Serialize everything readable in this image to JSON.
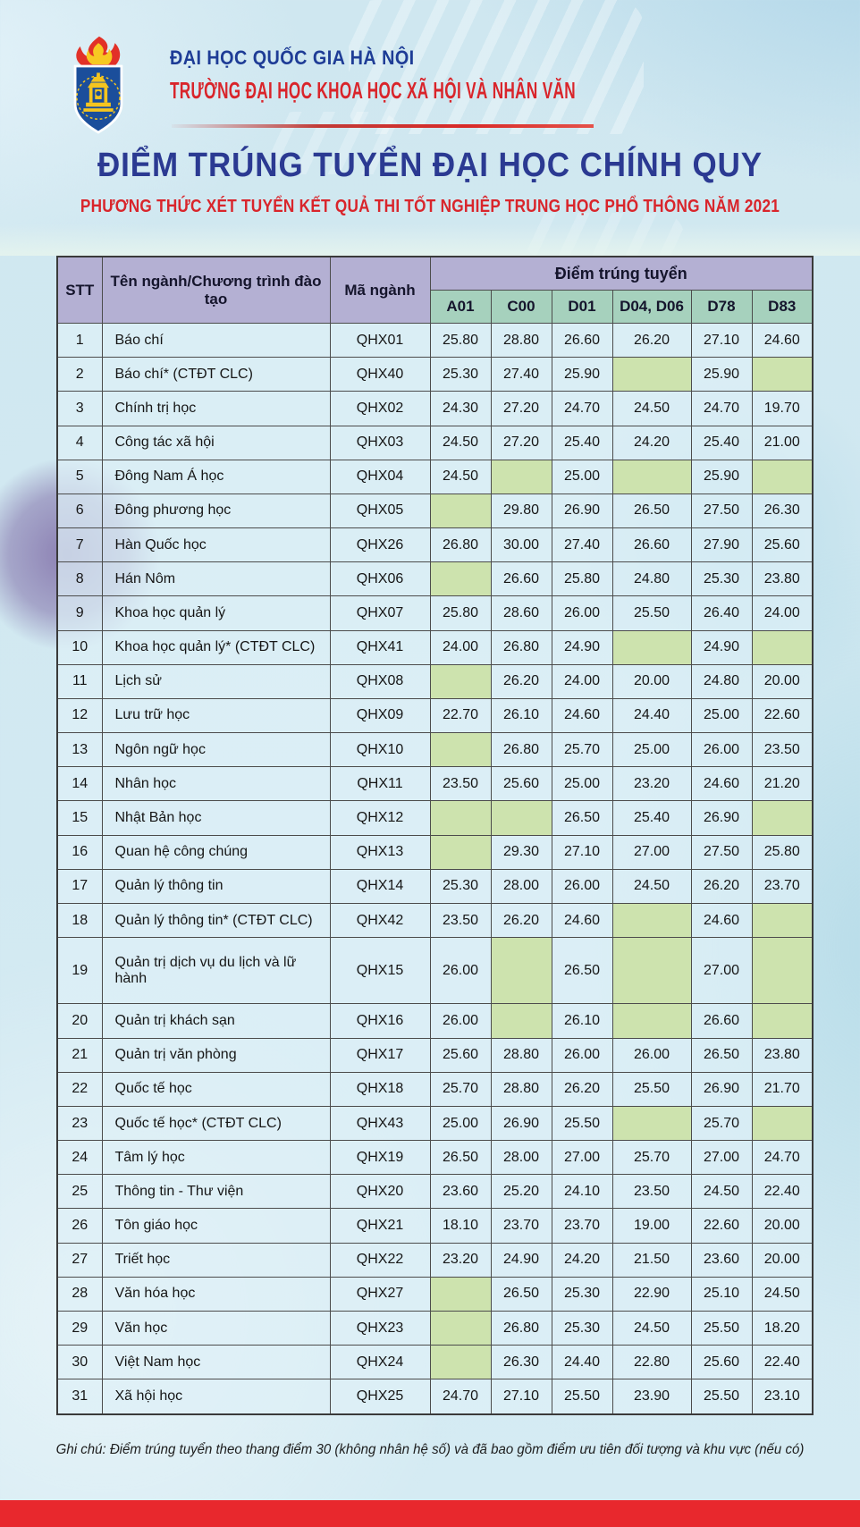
{
  "header": {
    "university": "ĐẠI HỌC QUỐC GIA HÀ NỘI",
    "school": "TRƯỜNG ĐẠI HỌC KHOA HỌC XÃ HỘI VÀ NHÂN VĂN",
    "logo": "vnu-ussh-crest"
  },
  "title": {
    "main": "ĐIỂM TRÚNG TUYỂN ĐẠI HỌC CHÍNH QUY",
    "subtitle": "PHƯƠNG THỨC XÉT TUYỂN KẾT QUẢ THI TỐT NGHIỆP TRUNG HỌC PHỔ THÔNG NĂM 2021"
  },
  "table": {
    "headers": {
      "stt": "STT",
      "name": "Tên ngành/Chương trình đào tạo",
      "code": "Mã ngành",
      "score_group": "Điểm trúng tuyển",
      "score_columns": [
        "A01",
        "C00",
        "D01",
        "D04, D06",
        "D78",
        "D83"
      ]
    },
    "rows": [
      {
        "stt": "1",
        "name": "Báo chí",
        "code": "QHX01",
        "scores": [
          "25.80",
          "28.80",
          "26.60",
          "26.20",
          "27.10",
          "24.60"
        ]
      },
      {
        "stt": "2",
        "name": "Báo chí* (CTĐT CLC)",
        "code": "QHX40",
        "scores": [
          "25.30",
          "27.40",
          "25.90",
          "",
          "25.90",
          ""
        ]
      },
      {
        "stt": "3",
        "name": "Chính trị học",
        "code": "QHX02",
        "scores": [
          "24.30",
          "27.20",
          "24.70",
          "24.50",
          "24.70",
          "19.70"
        ]
      },
      {
        "stt": "4",
        "name": "Công tác xã hội",
        "code": "QHX03",
        "scores": [
          "24.50",
          "27.20",
          "25.40",
          "24.20",
          "25.40",
          "21.00"
        ]
      },
      {
        "stt": "5",
        "name": "Đông Nam Á học",
        "code": "QHX04",
        "scores": [
          "24.50",
          "",
          "25.00",
          "",
          "25.90",
          ""
        ]
      },
      {
        "stt": "6",
        "name": "Đông phương học",
        "code": "QHX05",
        "scores": [
          "",
          "29.80",
          "26.90",
          "26.50",
          "27.50",
          "26.30"
        ]
      },
      {
        "stt": "7",
        "name": "Hàn Quốc học",
        "code": "QHX26",
        "scores": [
          "26.80",
          "30.00",
          "27.40",
          "26.60",
          "27.90",
          "25.60"
        ]
      },
      {
        "stt": "8",
        "name": "Hán Nôm",
        "code": "QHX06",
        "scores": [
          "",
          "26.60",
          "25.80",
          "24.80",
          "25.30",
          "23.80"
        ]
      },
      {
        "stt": "9",
        "name": "Khoa học quản lý",
        "code": "QHX07",
        "scores": [
          "25.80",
          "28.60",
          "26.00",
          "25.50",
          "26.40",
          "24.00"
        ]
      },
      {
        "stt": "10",
        "name": "Khoa học quản lý* (CTĐT CLC)",
        "code": "QHX41",
        "scores": [
          "24.00",
          "26.80",
          "24.90",
          "",
          "24.90",
          ""
        ]
      },
      {
        "stt": "11",
        "name": "Lịch sử",
        "code": "QHX08",
        "scores": [
          "",
          "26.20",
          "24.00",
          "20.00",
          "24.80",
          "20.00"
        ]
      },
      {
        "stt": "12",
        "name": "Lưu trữ học",
        "code": "QHX09",
        "scores": [
          "22.70",
          "26.10",
          "24.60",
          "24.40",
          "25.00",
          "22.60"
        ]
      },
      {
        "stt": "13",
        "name": "Ngôn ngữ học",
        "code": "QHX10",
        "scores": [
          "",
          "26.80",
          "25.70",
          "25.00",
          "26.00",
          "23.50"
        ]
      },
      {
        "stt": "14",
        "name": "Nhân học",
        "code": "QHX11",
        "scores": [
          "23.50",
          "25.60",
          "25.00",
          "23.20",
          "24.60",
          "21.20"
        ]
      },
      {
        "stt": "15",
        "name": "Nhật Bản học",
        "code": "QHX12",
        "scores": [
          "",
          "",
          "26.50",
          "25.40",
          "26.90",
          ""
        ]
      },
      {
        "stt": "16",
        "name": "Quan hệ công chúng",
        "code": "QHX13",
        "scores": [
          "",
          "29.30",
          "27.10",
          "27.00",
          "27.50",
          "25.80"
        ]
      },
      {
        "stt": "17",
        "name": "Quản lý thông tin",
        "code": "QHX14",
        "scores": [
          "25.30",
          "28.00",
          "26.00",
          "24.50",
          "26.20",
          "23.70"
        ]
      },
      {
        "stt": "18",
        "name": "Quản lý thông tin* (CTĐT CLC)",
        "code": "QHX42",
        "scores": [
          "23.50",
          "26.20",
          "24.60",
          "",
          "24.60",
          ""
        ]
      },
      {
        "stt": "19",
        "name": "Quản trị dịch vụ du lịch và lữ hành",
        "code": "QHX15",
        "scores": [
          "26.00",
          "",
          "26.50",
          "",
          "27.00",
          ""
        ]
      },
      {
        "stt": "20",
        "name": "Quản trị khách sạn",
        "code": "QHX16",
        "scores": [
          "26.00",
          "",
          "26.10",
          "",
          "26.60",
          ""
        ]
      },
      {
        "stt": "21",
        "name": "Quản trị văn phòng",
        "code": "QHX17",
        "scores": [
          "25.60",
          "28.80",
          "26.00",
          "26.00",
          "26.50",
          "23.80"
        ]
      },
      {
        "stt": "22",
        "name": "Quốc tế học",
        "code": "QHX18",
        "scores": [
          "25.70",
          "28.80",
          "26.20",
          "25.50",
          "26.90",
          "21.70"
        ]
      },
      {
        "stt": "23",
        "name": "Quốc tế học* (CTĐT CLC)",
        "code": "QHX43",
        "scores": [
          "25.00",
          "26.90",
          "25.50",
          "",
          "25.70",
          ""
        ]
      },
      {
        "stt": "24",
        "name": "Tâm lý học",
        "code": "QHX19",
        "scores": [
          "26.50",
          "28.00",
          "27.00",
          "25.70",
          "27.00",
          "24.70"
        ]
      },
      {
        "stt": "25",
        "name": "Thông tin - Thư viện",
        "code": "QHX20",
        "scores": [
          "23.60",
          "25.20",
          "24.10",
          "23.50",
          "24.50",
          "22.40"
        ]
      },
      {
        "stt": "26",
        "name": "Tôn giáo học",
        "code": "QHX21",
        "scores": [
          "18.10",
          "23.70",
          "23.70",
          "19.00",
          "22.60",
          "20.00"
        ]
      },
      {
        "stt": "27",
        "name": "Triết học",
        "code": "QHX22",
        "scores": [
          "23.20",
          "24.90",
          "24.20",
          "21.50",
          "23.60",
          "20.00"
        ]
      },
      {
        "stt": "28",
        "name": "Văn hóa học",
        "code": "QHX27",
        "scores": [
          "",
          "26.50",
          "25.30",
          "22.90",
          "25.10",
          "24.50"
        ]
      },
      {
        "stt": "29",
        "name": "Văn học",
        "code": "QHX23",
        "scores": [
          "",
          "26.80",
          "25.30",
          "24.50",
          "25.50",
          "18.20"
        ]
      },
      {
        "stt": "30",
        "name": "Việt Nam học",
        "code": "QHX24",
        "scores": [
          "",
          "26.30",
          "24.40",
          "22.80",
          "25.60",
          "22.40"
        ]
      },
      {
        "stt": "31",
        "name": "Xã hội học",
        "code": "QHX25",
        "scores": [
          "24.70",
          "27.10",
          "25.50",
          "23.90",
          "25.50",
          "23.10"
        ]
      }
    ]
  },
  "footer": {
    "note": "Ghi chú: Điểm trúng tuyển theo thang điểm 30 (không nhân hệ số) và đã bao gồm điểm ưu tiên đối tượng và khu vực (nếu có)"
  },
  "colors": {
    "header_purple": "#b4b0d3",
    "subheader_green": "#a6d1bd",
    "cell_blue": "#dbeef6",
    "empty_cell_green": "#cde3ae",
    "table_border": "#4c4c4c",
    "navy": "#1e3c96",
    "title_navy": "#2b3a92",
    "red": "#d9252b",
    "red_bar": "#e8282d",
    "page_background": "#cfe7f0"
  }
}
